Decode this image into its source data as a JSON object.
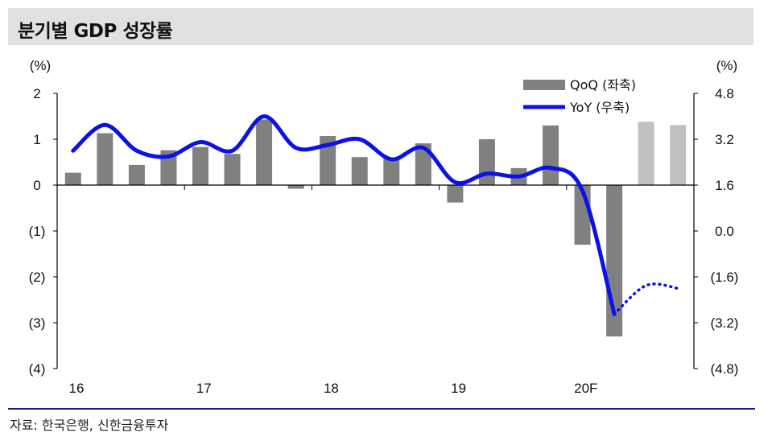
{
  "title": "분기별 GDP 성장률",
  "source": "자료: 한국은행, 신한금융투자",
  "colors": {
    "bar_actual": "#808080",
    "bar_forecast": "#c0c0c0",
    "line": "#0a12e8",
    "axis": "#000000"
  },
  "chart_data": {
    "type": "bar",
    "title": "분기별 GDP 성장률",
    "y_left": {
      "unit": "(%)",
      "ylim": [
        -4,
        2
      ],
      "ticks": [
        "2",
        "1",
        "0",
        "(1)",
        "(2)",
        "(3)",
        "(4)"
      ]
    },
    "y_right": {
      "unit": "(%)",
      "ylim": [
        -4.8,
        4.8
      ],
      "ticks": [
        "4.8",
        "3.2",
        "1.6",
        "0.0",
        "(1.6)",
        "(3.2)",
        "(4.8)"
      ]
    },
    "x_labels": [
      "16",
      "17",
      "18",
      "19",
      "20F"
    ],
    "x_label_quarter_index": [
      0,
      4,
      8,
      12,
      16
    ],
    "series": [
      {
        "name": "QoQ (좌축)",
        "kind": "bar",
        "axis": "left",
        "values": [
          0.27,
          1.13,
          0.44,
          0.76,
          0.83,
          0.68,
          1.43,
          -0.08,
          1.07,
          0.61,
          0.59,
          0.91,
          -0.38,
          1.0,
          0.37,
          1.3,
          -1.3,
          -3.3,
          1.38,
          1.31
        ],
        "forecast_from_index": 18
      },
      {
        "name": "YoY (우축)",
        "kind": "line",
        "axis": "right",
        "values": [
          2.8,
          3.7,
          2.8,
          2.6,
          3.1,
          2.8,
          4.0,
          2.9,
          3.0,
          3.2,
          2.5,
          2.9,
          1.7,
          2.0,
          1.9,
          2.2,
          1.4,
          -2.9,
          -1.9,
          -2.0
        ],
        "forecast_from_index": 17
      }
    ]
  }
}
